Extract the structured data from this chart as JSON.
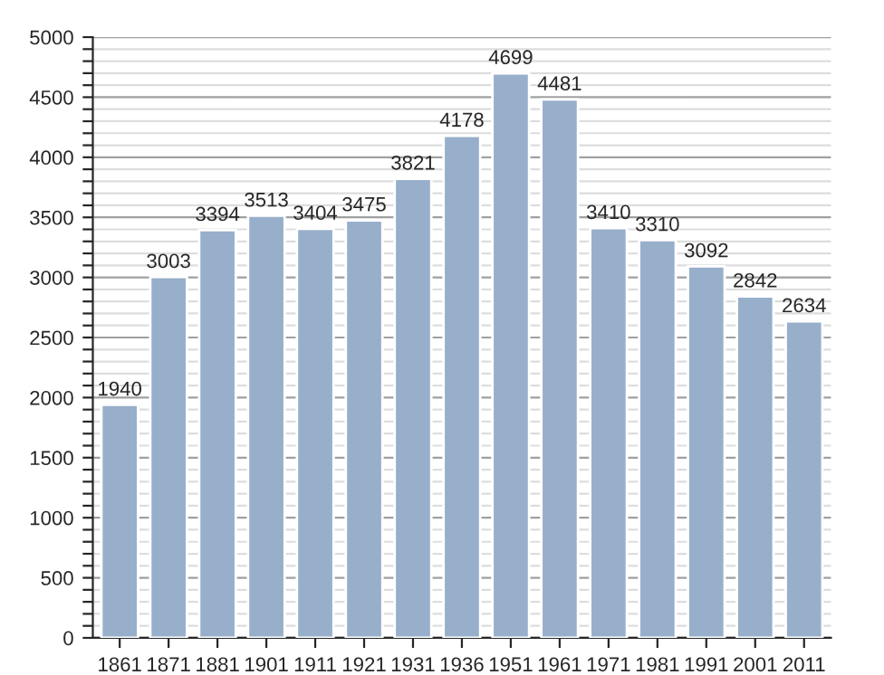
{
  "chart_data": {
    "type": "bar",
    "categories": [
      "1861",
      "1871",
      "1881",
      "1901",
      "1911",
      "1921",
      "1931",
      "1936",
      "1951",
      "1961",
      "1971",
      "1981",
      "1991",
      "2001",
      "2011"
    ],
    "values": [
      1940,
      3003,
      3394,
      3513,
      3404,
      3475,
      3821,
      4178,
      4699,
      4481,
      3410,
      3310,
      3092,
      2842,
      2634
    ],
    "color": "#98afcb",
    "ylim": [
      0,
      5000
    ],
    "yticks": [
      0,
      {
        "value": 100,
        "label": null
      },
      {
        "value": 200,
        "label": null
      },
      {
        "value": 300,
        "label": null
      },
      {
        "value": 400,
        "label": null
      },
      500,
      {
        "value": 600,
        "label": null
      },
      {
        "value": 700,
        "label": null
      },
      {
        "value": 800,
        "label": null
      },
      {
        "value": 900,
        "label": null
      },
      1000,
      {
        "value": 1100,
        "label": null
      },
      {
        "value": 1200,
        "label": null
      },
      {
        "value": 1300,
        "label": null
      },
      {
        "value": 1400,
        "label": null
      },
      1500,
      {
        "value": 1600,
        "label": null
      },
      {
        "value": 1700,
        "label": null
      },
      {
        "value": 1800,
        "label": null
      },
      {
        "value": 1900,
        "label": null
      },
      2000,
      {
        "value": 2100,
        "label": null
      },
      {
        "value": 2200,
        "label": null
      },
      {
        "value": 2300,
        "label": null
      },
      {
        "value": 2400,
        "label": null
      },
      2500,
      {
        "value": 2600,
        "label": null
      },
      {
        "value": 2700,
        "label": null
      },
      {
        "value": 2800,
        "label": null
      },
      {
        "value": 2900,
        "label": null
      },
      3000,
      {
        "value": 3100,
        "label": null
      },
      {
        "value": 3200,
        "label": null
      },
      {
        "value": 3300,
        "label": null
      },
      {
        "value": 3400,
        "label": null
      },
      3500,
      {
        "value": 3600,
        "label": null
      },
      {
        "value": 3700,
        "label": null
      },
      {
        "value": 3800,
        "label": null
      },
      {
        "value": 3900,
        "label": null
      },
      4000,
      {
        "value": 4100,
        "label": null
      },
      {
        "value": 4200,
        "label": null
      },
      {
        "value": 4300,
        "label": null
      },
      {
        "value": 4400,
        "label": null
      },
      4500,
      {
        "value": 4600,
        "label": null
      },
      {
        "value": 4700,
        "label": null
      },
      {
        "value": 4800,
        "label": null
      },
      {
        "value": 4900,
        "label": null
      },
      5000
    ],
    "grid": "y",
    "data_labels": true
  }
}
